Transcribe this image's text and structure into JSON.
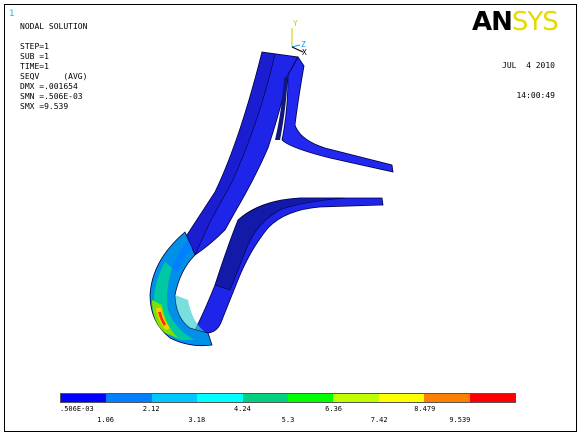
{
  "window_number": "1",
  "logo": {
    "main": "AN",
    "accent": "SYS"
  },
  "info_lines": [
    "NODAL SOLUTION",
    "",
    "STEP=1",
    "SUB =1",
    "TIME=1",
    "SEQV     (AVG)",
    "DMX =.001654",
    "SMN =.506E-03",
    "SMX =9.539"
  ],
  "date": "JUL  4 2010",
  "time": "14:00:49",
  "triad": {
    "y_label": "Y",
    "z_label": "Z",
    "x_label": "X"
  },
  "colors": {
    "legend": [
      "#0000ff",
      "#0080ff",
      "#00c8ff",
      "#00ffff",
      "#00d080",
      "#00ff00",
      "#c0ff00",
      "#ffff00",
      "#ff8000",
      "#ff0000"
    ],
    "model_main": "#1e24e8",
    "model_dark": "#101880",
    "model_edge": "#000040"
  },
  "legend_ticks_top": [
    ".506E-03",
    "2.12",
    "4.24",
    "6.36",
    "8.479"
  ],
  "legend_ticks_bottom": [
    "1.06",
    "3.18",
    "5.3",
    "7.42",
    "9.539"
  ]
}
